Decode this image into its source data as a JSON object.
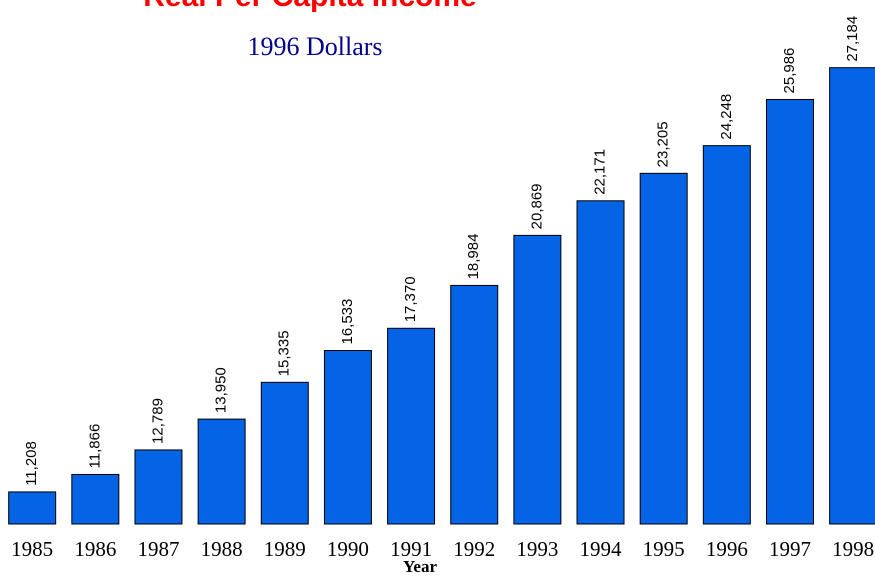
{
  "chart_data": {
    "type": "bar",
    "title": "Real Per Capita Income",
    "subtitle": "1996 Dollars",
    "x_label": "Year",
    "categories": [
      "1985",
      "1986",
      "1987",
      "1988",
      "1989",
      "1990",
      "1991",
      "1992",
      "1993",
      "1994",
      "1995",
      "1996",
      "1997",
      "1998"
    ],
    "values": [
      11208,
      11866,
      12789,
      13950,
      15335,
      16533,
      17370,
      18984,
      20869,
      22171,
      23205,
      24248,
      25986,
      27184
    ],
    "value_labels": [
      "11,208",
      "11,866",
      "12,789",
      "13,950",
      "15,335",
      "16,533",
      "17,370",
      "18,984",
      "20,869",
      "22,171",
      "23,205",
      "24,248",
      "25,986",
      "27,184"
    ],
    "color": "#0563e6",
    "ylim": [
      10000,
      28000
    ]
  }
}
